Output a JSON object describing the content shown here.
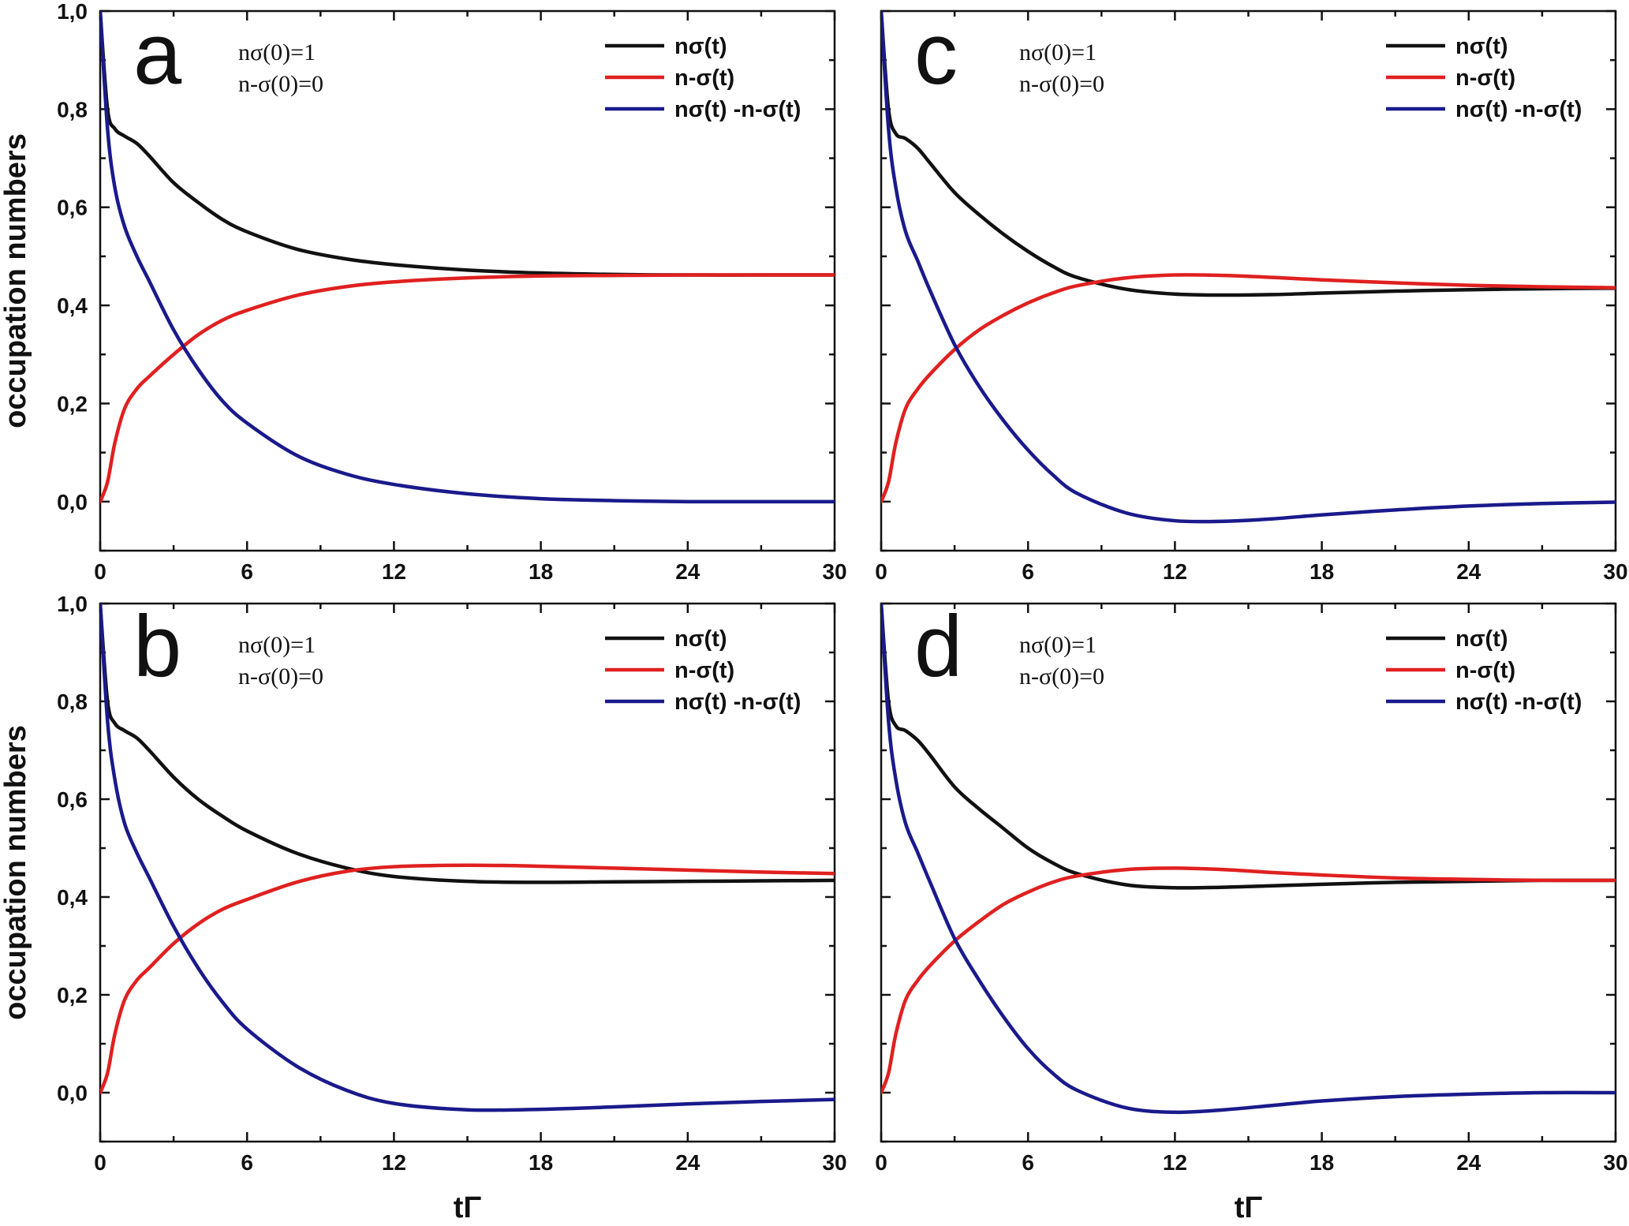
{
  "chart_data": [
    {
      "type": "line",
      "panel_label": "a",
      "ylabel": "occupation numbers",
      "xlabel": "",
      "xlim": [
        0,
        30
      ],
      "ylim": [
        -0.1,
        1.0
      ],
      "xticks": [
        "0",
        "6",
        "12",
        "18",
        "24",
        "30"
      ],
      "yticks": [
        "1,0",
        "0,8",
        "0,6",
        "0,4",
        "0,2",
        "0,0"
      ],
      "annotations": [
        "nσ(0)=1",
        "n-σ(0)=0"
      ],
      "legend_position": "top-right",
      "series": [
        {
          "name": "nσ(t)",
          "color": "#111111",
          "x": [
            0,
            0.3,
            0.6,
            1,
            1.5,
            2,
            3,
            4,
            5,
            6,
            8,
            10,
            12,
            15,
            18,
            21,
            24,
            27,
            30
          ],
          "y": [
            1.0,
            0.8,
            0.76,
            0.745,
            0.73,
            0.705,
            0.65,
            0.61,
            0.575,
            0.55,
            0.515,
            0.495,
            0.483,
            0.472,
            0.466,
            0.463,
            0.462,
            0.462,
            0.462
          ]
        },
        {
          "name": "n-σ(t)",
          "color": "#e02020",
          "x": [
            0,
            0.3,
            0.6,
            1,
            1.5,
            2,
            3,
            4,
            5,
            6,
            8,
            10,
            12,
            15,
            18,
            21,
            24,
            27,
            30
          ],
          "y": [
            0.0,
            0.04,
            0.12,
            0.19,
            0.23,
            0.255,
            0.3,
            0.34,
            0.37,
            0.39,
            0.42,
            0.438,
            0.448,
            0.456,
            0.46,
            0.461,
            0.462,
            0.462,
            0.462
          ]
        },
        {
          "name": "nσ(t) -n-σ(t)",
          "color": "#1a1a8c",
          "x": [
            0,
            0.3,
            0.6,
            1,
            1.5,
            2,
            3,
            4,
            5,
            6,
            8,
            10,
            12,
            15,
            18,
            21,
            24,
            27,
            30
          ],
          "y": [
            1.0,
            0.76,
            0.64,
            0.56,
            0.5,
            0.45,
            0.35,
            0.27,
            0.205,
            0.16,
            0.095,
            0.057,
            0.035,
            0.016,
            0.006,
            0.002,
            0.0,
            0.0,
            0.0
          ]
        }
      ]
    },
    {
      "type": "line",
      "panel_label": "b",
      "ylabel": "occupation numbers",
      "xlabel": "tΓ",
      "xlim": [
        0,
        30
      ],
      "ylim": [
        -0.1,
        1.0
      ],
      "xticks": [
        "0",
        "6",
        "12",
        "18",
        "24",
        "30"
      ],
      "yticks": [
        "1,0",
        "0,8",
        "0,6",
        "0,4",
        "0,2",
        "0,0"
      ],
      "annotations": [
        "nσ(0)=1",
        "n-σ(0)=0"
      ],
      "legend_position": "top-right",
      "series": [
        {
          "name": "nσ(t)",
          "color": "#111111",
          "x": [
            0,
            0.3,
            0.6,
            1,
            1.5,
            2,
            3,
            4,
            5,
            6,
            8,
            10,
            12,
            15,
            18,
            21,
            24,
            27,
            30
          ],
          "y": [
            1.0,
            0.8,
            0.755,
            0.74,
            0.725,
            0.7,
            0.645,
            0.6,
            0.565,
            0.535,
            0.49,
            0.46,
            0.442,
            0.432,
            0.43,
            0.431,
            0.432,
            0.433,
            0.434
          ]
        },
        {
          "name": "n-σ(t)",
          "color": "#e02020",
          "x": [
            0,
            0.3,
            0.6,
            1,
            1.5,
            2,
            3,
            4,
            5,
            6,
            8,
            10,
            12,
            15,
            18,
            21,
            24,
            27,
            30
          ],
          "y": [
            0.0,
            0.04,
            0.12,
            0.19,
            0.23,
            0.255,
            0.305,
            0.345,
            0.375,
            0.395,
            0.43,
            0.452,
            0.462,
            0.465,
            0.463,
            0.459,
            0.455,
            0.451,
            0.448
          ]
        },
        {
          "name": "nσ(t) -n-σ(t)",
          "color": "#1a1a8c",
          "x": [
            0,
            0.3,
            0.6,
            1,
            1.5,
            2,
            3,
            4,
            5,
            6,
            8,
            10,
            12,
            15,
            18,
            21,
            24,
            27,
            30
          ],
          "y": [
            1.0,
            0.76,
            0.64,
            0.55,
            0.49,
            0.44,
            0.34,
            0.255,
            0.185,
            0.13,
            0.055,
            0.006,
            -0.022,
            -0.035,
            -0.034,
            -0.029,
            -0.023,
            -0.018,
            -0.014
          ]
        }
      ]
    },
    {
      "type": "line",
      "panel_label": "c",
      "ylabel": "",
      "xlabel": "",
      "xlim": [
        0,
        30
      ],
      "ylim": [
        -0.1,
        1.0
      ],
      "xticks": [
        "0",
        "6",
        "12",
        "18",
        "24",
        "30"
      ],
      "yticks": [],
      "annotations": [
        "nσ(0)=1",
        "n-σ(0)=0"
      ],
      "legend_position": "top-right",
      "series": [
        {
          "name": "nσ(t)",
          "color": "#111111",
          "x": [
            0,
            0.3,
            0.6,
            1,
            1.5,
            2,
            3,
            4,
            5,
            6,
            7,
            8,
            10,
            12,
            14,
            16,
            18,
            21,
            24,
            27,
            30
          ],
          "y": [
            1.0,
            0.8,
            0.75,
            0.74,
            0.72,
            0.69,
            0.63,
            0.585,
            0.545,
            0.51,
            0.48,
            0.457,
            0.433,
            0.423,
            0.421,
            0.422,
            0.425,
            0.429,
            0.432,
            0.434,
            0.435
          ]
        },
        {
          "name": "n-σ(t)",
          "color": "#e02020",
          "x": [
            0,
            0.3,
            0.6,
            1,
            1.5,
            2,
            3,
            4,
            5,
            6,
            7,
            8,
            10,
            12,
            14,
            16,
            18,
            21,
            24,
            27,
            30
          ],
          "y": [
            0.0,
            0.04,
            0.12,
            0.19,
            0.23,
            0.26,
            0.31,
            0.35,
            0.38,
            0.405,
            0.425,
            0.44,
            0.456,
            0.462,
            0.461,
            0.457,
            0.452,
            0.446,
            0.441,
            0.438,
            0.436
          ]
        },
        {
          "name": "nσ(t) -n-σ(t)",
          "color": "#1a1a8c",
          "x": [
            0,
            0.3,
            0.6,
            1,
            1.5,
            2,
            3,
            4,
            5,
            6,
            7,
            8,
            10,
            12,
            14,
            16,
            18,
            21,
            24,
            27,
            30
          ],
          "y": [
            1.0,
            0.76,
            0.64,
            0.55,
            0.49,
            0.43,
            0.32,
            0.235,
            0.165,
            0.105,
            0.055,
            0.017,
            -0.023,
            -0.039,
            -0.04,
            -0.035,
            -0.027,
            -0.017,
            -0.009,
            -0.004,
            -0.001
          ]
        }
      ]
    },
    {
      "type": "line",
      "panel_label": "d",
      "ylabel": "",
      "xlabel": "tΓ",
      "xlim": [
        0,
        30
      ],
      "ylim": [
        -0.1,
        1.0
      ],
      "xticks": [
        "0",
        "6",
        "12",
        "18",
        "24",
        "30"
      ],
      "yticks": [],
      "annotations": [
        "nσ(0)=1",
        "n-σ(0)=0"
      ],
      "legend_position": "top-right",
      "series": [
        {
          "name": "nσ(t)",
          "color": "#111111",
          "x": [
            0,
            0.3,
            0.6,
            1,
            1.5,
            2,
            3,
            4,
            5,
            6,
            7,
            8,
            10,
            12,
            14,
            16,
            18,
            21,
            24,
            27,
            30
          ],
          "y": [
            1.0,
            0.8,
            0.75,
            0.74,
            0.72,
            0.69,
            0.625,
            0.58,
            0.54,
            0.5,
            0.47,
            0.448,
            0.425,
            0.419,
            0.42,
            0.423,
            0.426,
            0.43,
            0.432,
            0.434,
            0.434
          ]
        },
        {
          "name": "n-σ(t)",
          "color": "#e02020",
          "x": [
            0,
            0.3,
            0.6,
            1,
            1.5,
            2,
            3,
            4,
            5,
            6,
            7,
            8,
            10,
            12,
            14,
            16,
            18,
            21,
            24,
            27,
            30
          ],
          "y": [
            0.0,
            0.04,
            0.12,
            0.19,
            0.23,
            0.26,
            0.31,
            0.35,
            0.385,
            0.41,
            0.43,
            0.443,
            0.456,
            0.459,
            0.456,
            0.45,
            0.445,
            0.439,
            0.436,
            0.434,
            0.434
          ]
        },
        {
          "name": "nσ(t) -n-σ(t)",
          "color": "#1a1a8c",
          "x": [
            0,
            0.3,
            0.6,
            1,
            1.5,
            2,
            3,
            4,
            5,
            6,
            7,
            8,
            10,
            12,
            14,
            16,
            18,
            21,
            24,
            27,
            30
          ],
          "y": [
            1.0,
            0.76,
            0.64,
            0.55,
            0.49,
            0.43,
            0.315,
            0.23,
            0.155,
            0.09,
            0.04,
            0.005,
            -0.031,
            -0.04,
            -0.035,
            -0.026,
            -0.017,
            -0.008,
            -0.003,
            0.0,
            0.0
          ]
        }
      ]
    }
  ]
}
